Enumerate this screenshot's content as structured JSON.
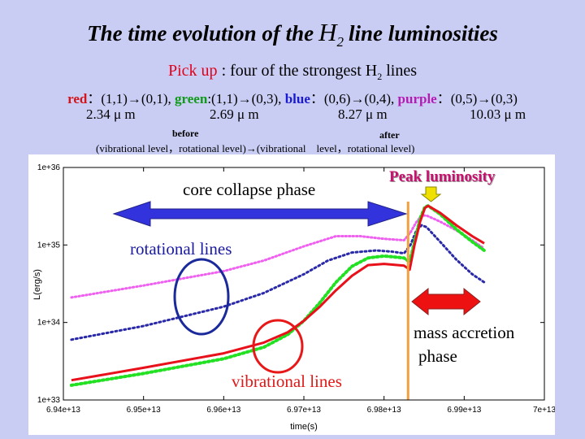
{
  "header": {
    "title_pre": "The time evolution of the",
    "title_h": "H",
    "title_sub": "2",
    "title_post": "line luminosities",
    "pickup_label": "Pick up",
    "pickup_text": ": four of the strongest",
    "pickup_h": "H",
    "pickup_sub": "2",
    "pickup_post": "lines"
  },
  "line_list": {
    "red_label": "red",
    "red_trans": "：(1,1)→(0,1),",
    "green_label": "green",
    "green_trans": ":(1,1)→(0,3),",
    "blue_label": "blue",
    "blue_trans": "：(0,6)→(0,4),",
    "purple_label": "purple",
    "purple_trans": "：(0,5)→(0,3)"
  },
  "wavelengths": [
    "2.34 μ m",
    "2.69 μ m",
    "8.27 μ m",
    "10.03 μ m"
  ],
  "notation": {
    "before": "before",
    "after": "after",
    "vib_text": "(vibrational level，rotational level)→(vibrational　level，rotational level)"
  },
  "annotations": {
    "core_collapse": "core collapse phase",
    "peak": "Peak luminosity",
    "rotational": "rotational lines",
    "vibrational": "vibrational lines",
    "mass_accretion_1": "mass accretion",
    "mass_accretion_2": "phase"
  },
  "colors": {
    "red": "#e8101a",
    "green": "#22e022",
    "blue": "#2a2aa8",
    "purple": "#f060f0",
    "arrow_blue": "#3333dd",
    "arrow_red": "#ee1111",
    "orange_line": "#f0a040",
    "peak_arrow": "#f0e000"
  },
  "chart_data": {
    "type": "line",
    "log_y": true,
    "xlabel": "time(s)",
    "ylabel": "L(erg/s)",
    "xlim": [
      69400000000000.0,
      70000000000000.0
    ],
    "ylim": [
      1e+33,
      1e+36
    ],
    "x_tick_values": [
      69400000000000.0,
      69500000000000.0,
      69600000000000.0,
      69700000000000.0,
      69800000000000.0,
      69900000000000.0,
      70000000000000.0
    ],
    "x_ticks": [
      "6.94e+13",
      "6.95e+13",
      "6.96e+13",
      "6.97e+13",
      "6.98e+13",
      "6.99e+13",
      "7e+13"
    ],
    "y_tick_values": [
      1e+33,
      1e+34,
      1e+35,
      1e+36
    ],
    "y_ticks": [
      "1e+33",
      "1e+34",
      "1e+35",
      "1e+36"
    ],
    "divider_x": 69830000000000.0,
    "series": [
      {
        "name": "red",
        "style": "solid",
        "x": [
          69410000000000.0,
          69500000000000.0,
          69600000000000.0,
          69650000000000.0,
          69680000000000.0,
          69700000000000.0,
          69720000000000.0,
          69740000000000.0,
          69760000000000.0,
          69780000000000.0,
          69800000000000.0,
          69825000000000.0,
          69832000000000.0,
          69838000000000.0,
          69845000000000.0,
          69851000000000.0,
          69855000000000.0,
          69870000000000.0,
          69890000000000.0,
          69910000000000.0,
          69925000000000.0
        ],
        "y": [
          1.8e+33,
          2.6e+33,
          4e+33,
          5.5e+33,
          7.5e+33,
          1.05e+34,
          1.6e+34,
          2.6e+34,
          4e+34,
          5.5e+34,
          5.7e+34,
          5.4e+34,
          4.8e+34,
          1e+35,
          2e+35,
          3e+35,
          3.2e+35,
          2.6e+35,
          1.8e+35,
          1.3e+35,
          1.05e+35
        ]
      },
      {
        "name": "green",
        "style": "dotted",
        "x": [
          69410000000000.0,
          69500000000000.0,
          69600000000000.0,
          69650000000000.0,
          69680000000000.0,
          69700000000000.0,
          69720000000000.0,
          69740000000000.0,
          69760000000000.0,
          69780000000000.0,
          69800000000000.0,
          69825000000000.0,
          69832000000000.0,
          69838000000000.0,
          69845000000000.0,
          69851000000000.0,
          69855000000000.0,
          69870000000000.0,
          69890000000000.0,
          69910000000000.0,
          69925000000000.0
        ],
        "y": [
          1.55e+33,
          2.2e+33,
          3.4e+33,
          4.8e+33,
          7e+33,
          1.05e+34,
          1.8e+34,
          3.3e+34,
          5.3e+34,
          6.8e+34,
          7.2e+34,
          6.8e+34,
          6e+34,
          1.1e+35,
          2.2e+35,
          3.1e+35,
          3.2e+35,
          2.5e+35,
          1.6e+35,
          1.1e+35,
          8.5e+34
        ]
      },
      {
        "name": "blue",
        "style": "dotted",
        "x": [
          69410000000000.0,
          69500000000000.0,
          69600000000000.0,
          69650000000000.0,
          69700000000000.0,
          69730000000000.0,
          69760000000000.0,
          69790000000000.0,
          69810000000000.0,
          69825000000000.0,
          69833000000000.0,
          69840000000000.0,
          69847000000000.0,
          69853000000000.0,
          69870000000000.0,
          69890000000000.0,
          69910000000000.0,
          69925000000000.0
        ],
        "y": [
          6e+33,
          9e+33,
          1.6e+34,
          2.4e+34,
          4.2e+34,
          6.3e+34,
          8e+34,
          8.5e+34,
          8.2e+34,
          7.8e+34,
          1e+35,
          1.5e+35,
          1.8e+35,
          1.7e+35,
          1.1e+35,
          6.5e+34,
          4.2e+34,
          3.3e+34
        ]
      },
      {
        "name": "purple",
        "style": "dotted",
        "x": [
          69410000000000.0,
          69500000000000.0,
          69600000000000.0,
          69650000000000.0,
          69700000000000.0,
          69740000000000.0,
          69770000000000.0,
          69800000000000.0,
          69825000000000.0,
          69833000000000.0,
          69840000000000.0,
          69847000000000.0,
          69853000000000.0,
          69870000000000.0,
          69890000000000.0,
          69910000000000.0,
          69925000000000.0
        ],
        "y": [
          2.1e+34,
          3e+34,
          4.6e+34,
          6.3e+34,
          9.6e+34,
          1.3e+35,
          1.3e+35,
          1.2e+35,
          1.15e+35,
          1.45e+35,
          1.95e+35,
          2.4e+35,
          2.4e+35,
          2e+35,
          1.55e+35,
          1.15e+35,
          9e+34
        ]
      }
    ]
  }
}
